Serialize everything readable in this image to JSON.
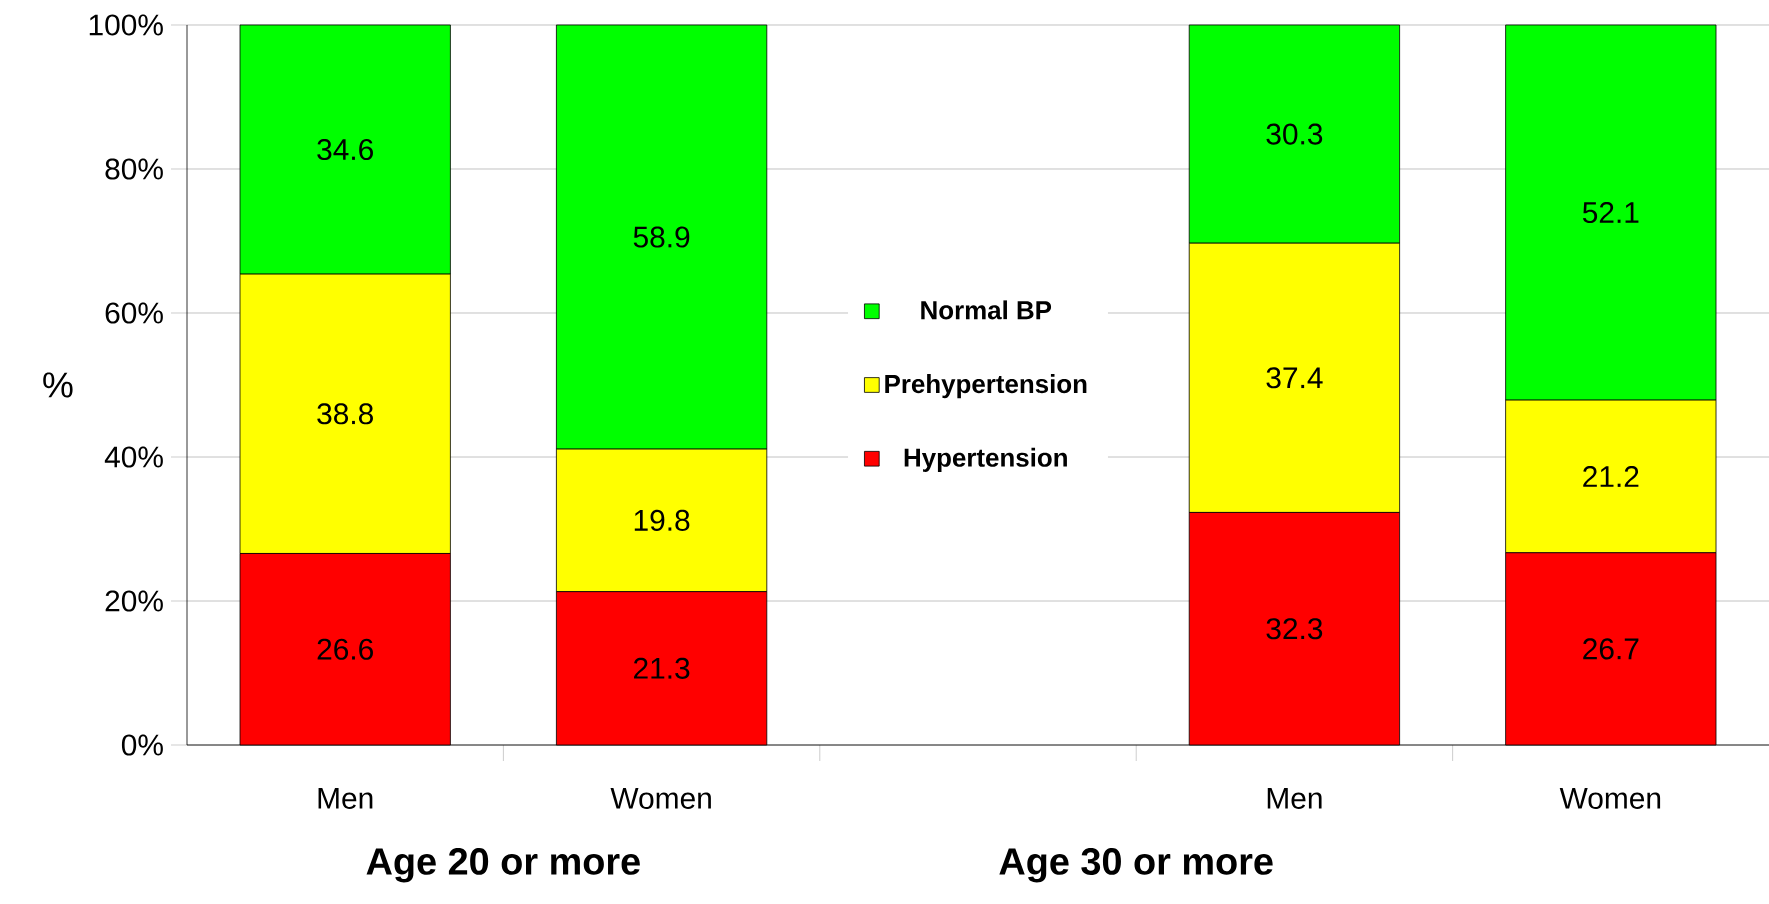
{
  "chart_data": {
    "type": "bar",
    "stacked": true,
    "ylabel": "%",
    "categories": [
      "Men",
      "Women",
      null,
      "Men",
      "Women"
    ],
    "series": [
      {
        "name": "Hypertension",
        "color": "#ff0000",
        "values": [
          26.6,
          21.3,
          null,
          32.3,
          26.7
        ]
      },
      {
        "name": "Prehypertension",
        "color": "#ffff00",
        "values": [
          38.8,
          19.8,
          null,
          37.4,
          21.2
        ]
      },
      {
        "name": "Normal BP",
        "color": "#00ff00",
        "values": [
          34.6,
          58.9,
          null,
          30.3,
          52.1
        ]
      }
    ],
    "ylim": [
      0,
      100
    ],
    "yticks": [
      {
        "value": 0,
        "label": "0%"
      },
      {
        "value": 20,
        "label": "20%"
      },
      {
        "value": 40,
        "label": "40%"
      },
      {
        "value": 60,
        "label": "60%"
      },
      {
        "value": 80,
        "label": "80%"
      },
      {
        "value": 100,
        "label": "100%"
      }
    ],
    "grid": "y",
    "legend": "center",
    "data_labels": true,
    "annotations": [
      "Age 20 or more",
      "Age 30 or more"
    ]
  }
}
